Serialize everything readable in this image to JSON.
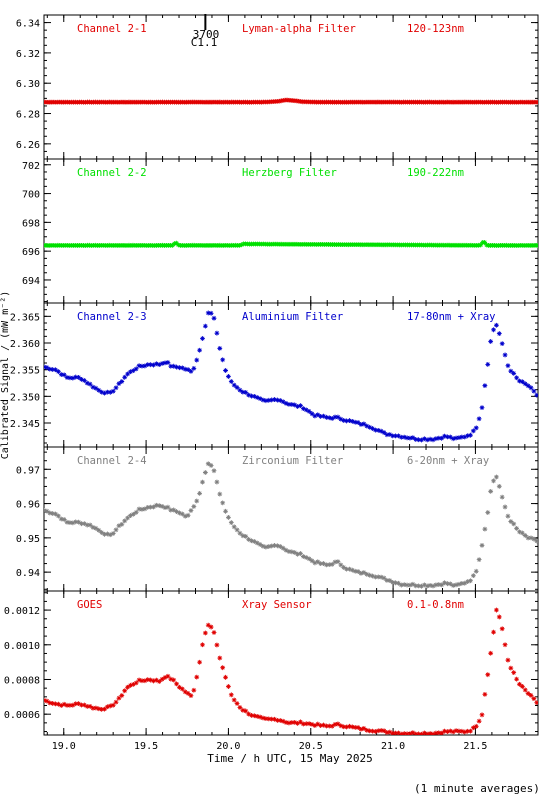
{
  "xaxis": {
    "label": "Time / h UTC, 15 May 2025",
    "range": [
      18.88,
      21.88
    ],
    "ticks": [
      19.0,
      19.5,
      20.0,
      20.5,
      21.0,
      21.5
    ],
    "tick_labels": [
      "19.0",
      "19.5",
      "20.0",
      "20.5",
      "21.0",
      "21.5"
    ]
  },
  "ylabel": "Calibrated Signal / (mW m⁻²)",
  "footnote": "(1 minute averages)",
  "event_marker": {
    "x": 19.86,
    "label_top": "3700",
    "label_bottom": "C1.1"
  },
  "chart_data": [
    {
      "type": "scatter",
      "channel": "Channel 2-1",
      "filter": "Lyman-alpha Filter",
      "band": "120-123nm",
      "color": "#e00000",
      "ylim": [
        6.25,
        6.345
      ],
      "yticks": [
        6.26,
        6.28,
        6.3,
        6.32,
        6.34
      ],
      "ytick_labels": [
        "6.26",
        "6.28",
        "6.30",
        "6.32",
        "6.34"
      ],
      "x": [
        18.88,
        19.5,
        20.2,
        20.3,
        20.35,
        20.4,
        20.45,
        20.55,
        21.0,
        21.88
      ],
      "values": [
        6.2875,
        6.2875,
        6.2875,
        6.288,
        6.289,
        6.2885,
        6.2878,
        6.2875,
        6.2875,
        6.2875
      ]
    },
    {
      "type": "scatter",
      "channel": "Channel 2-2",
      "filter": "Herzberg Filter",
      "band": "190-222nm",
      "color": "#00e000",
      "ylim": [
        692.4,
        702.4
      ],
      "yticks": [
        694,
        696,
        698,
        700,
        702
      ],
      "ytick_labels": [
        "694",
        "696",
        "698",
        "700",
        "702"
      ],
      "x": [
        18.88,
        19.66,
        19.68,
        19.7,
        20.07,
        20.09,
        21.53,
        21.55,
        21.57,
        21.88
      ],
      "values": [
        696.4,
        696.4,
        696.6,
        696.4,
        696.4,
        696.5,
        696.4,
        696.7,
        696.4,
        696.4
      ]
    },
    {
      "type": "scatter",
      "channel": "Channel 2-3",
      "filter": "Aluminium Filter",
      "band": "17-80nm + Xray",
      "color": "#0000cc",
      "ylim": [
        2.3405,
        2.3675
      ],
      "yticks": [
        2.345,
        2.35,
        2.355,
        2.36,
        2.365
      ],
      "ytick_labels": [
        "2.345",
        "2.350",
        "2.355",
        "2.360",
        "2.365"
      ],
      "x": [
        18.88,
        18.95,
        19.02,
        19.1,
        19.17,
        19.22,
        19.28,
        19.33,
        19.38,
        19.45,
        19.52,
        19.58,
        19.62,
        19.66,
        19.7,
        19.75,
        19.78,
        19.82,
        19.85,
        19.88,
        19.91,
        19.94,
        19.98,
        20.02,
        20.08,
        20.15,
        20.22,
        20.3,
        20.37,
        20.45,
        20.52,
        20.6,
        20.66,
        20.72,
        20.78,
        20.85,
        20.95,
        21.05,
        21.15,
        21.25,
        21.32,
        21.38,
        21.44,
        21.48,
        21.51,
        21.54,
        21.57,
        21.6,
        21.63,
        21.66,
        21.7,
        21.76,
        21.82,
        21.88
      ],
      "values": [
        2.3555,
        2.355,
        2.3535,
        2.3535,
        2.352,
        2.351,
        2.3505,
        2.352,
        2.354,
        2.3555,
        2.356,
        2.356,
        2.3565,
        2.3555,
        2.3555,
        2.355,
        2.3545,
        2.358,
        2.362,
        2.366,
        2.365,
        2.36,
        2.355,
        2.3525,
        2.351,
        2.35,
        2.349,
        2.3495,
        2.3485,
        2.348,
        2.3465,
        2.346,
        2.346,
        2.3455,
        2.345,
        2.3445,
        2.343,
        2.3425,
        2.342,
        2.342,
        2.3425,
        2.342,
        2.3425,
        2.343,
        2.3445,
        2.348,
        2.355,
        2.362,
        2.3635,
        2.36,
        2.3555,
        2.353,
        2.352,
        2.35
      ]
    },
    {
      "type": "scatter",
      "channel": "Channel 2-4",
      "filter": "Zirconium Filter",
      "band": "6-20nm + Xray",
      "color": "#808080",
      "ylim": [
        0.9345,
        0.9765
      ],
      "yticks": [
        0.94,
        0.95,
        0.96,
        0.97
      ],
      "ytick_labels": [
        "0.94",
        "0.95",
        "0.96",
        "0.97"
      ],
      "x": [
        18.88,
        18.95,
        19.02,
        19.1,
        19.17,
        19.22,
        19.28,
        19.33,
        19.38,
        19.45,
        19.52,
        19.58,
        19.62,
        19.66,
        19.7,
        19.75,
        19.78,
        19.82,
        19.85,
        19.88,
        19.91,
        19.94,
        19.98,
        20.02,
        20.08,
        20.15,
        20.22,
        20.3,
        20.37,
        20.45,
        20.52,
        20.6,
        20.66,
        20.72,
        20.78,
        20.85,
        20.95,
        21.05,
        21.15,
        21.25,
        21.32,
        21.38,
        21.44,
        21.48,
        21.51,
        21.54,
        21.57,
        21.6,
        21.63,
        21.66,
        21.7,
        21.76,
        21.82,
        21.88
      ],
      "values": [
        0.958,
        0.957,
        0.9545,
        0.9545,
        0.9535,
        0.952,
        0.9505,
        0.953,
        0.9555,
        0.958,
        0.959,
        0.9595,
        0.959,
        0.958,
        0.9575,
        0.956,
        0.9585,
        0.962,
        0.968,
        0.972,
        0.97,
        0.964,
        0.958,
        0.954,
        0.951,
        0.949,
        0.947,
        0.948,
        0.946,
        0.945,
        0.943,
        0.942,
        0.943,
        0.941,
        0.94,
        0.9395,
        0.938,
        0.9365,
        0.9362,
        0.9362,
        0.9368,
        0.936,
        0.937,
        0.938,
        0.941,
        0.948,
        0.956,
        0.966,
        0.968,
        0.962,
        0.956,
        0.952,
        0.95,
        0.949
      ]
    },
    {
      "type": "scatter",
      "channel": "GOES",
      "filter": "Xray Sensor",
      "band": "0.1-0.8nm",
      "color": "#e00000",
      "ylim": [
        0.00048,
        0.00131
      ],
      "yticks": [
        0.0006,
        0.0008,
        0.001,
        0.0012
      ],
      "ytick_labels": [
        "0.0006",
        "0.0008",
        "0.0010",
        "0.0012"
      ],
      "x": [
        18.88,
        18.95,
        19.02,
        19.1,
        19.17,
        19.22,
        19.28,
        19.33,
        19.38,
        19.45,
        19.52,
        19.58,
        19.62,
        19.66,
        19.7,
        19.75,
        19.78,
        19.82,
        19.85,
        19.88,
        19.91,
        19.94,
        19.98,
        20.02,
        20.08,
        20.15,
        20.22,
        20.3,
        20.37,
        20.45,
        20.52,
        20.6,
        20.66,
        20.72,
        20.78,
        20.85,
        20.95,
        21.05,
        21.15,
        21.25,
        21.32,
        21.38,
        21.44,
        21.48,
        21.51,
        21.54,
        21.57,
        21.6,
        21.63,
        21.66,
        21.7,
        21.76,
        21.82,
        21.88
      ],
      "values": [
        0.00068,
        0.00066,
        0.00065,
        0.00066,
        0.00064,
        0.00063,
        0.00064,
        0.00068,
        0.00075,
        0.00079,
        0.0008,
        0.00079,
        0.00082,
        0.0008,
        0.00076,
        0.00072,
        0.0007,
        0.00087,
        0.00105,
        0.00112,
        0.00108,
        0.00095,
        0.00082,
        0.0007,
        0.00063,
        0.00059,
        0.00057,
        0.00057,
        0.00055,
        0.00055,
        0.00054,
        0.00053,
        0.00054,
        0.00053,
        0.00052,
        0.00051,
        0.0005,
        0.00049,
        0.00049,
        0.00049,
        0.0005,
        0.0005,
        0.0005,
        0.00051,
        0.00054,
        0.0006,
        0.0008,
        0.001,
        0.00122,
        0.0011,
        0.0009,
        0.00078,
        0.00072,
        0.00066
      ]
    }
  ]
}
